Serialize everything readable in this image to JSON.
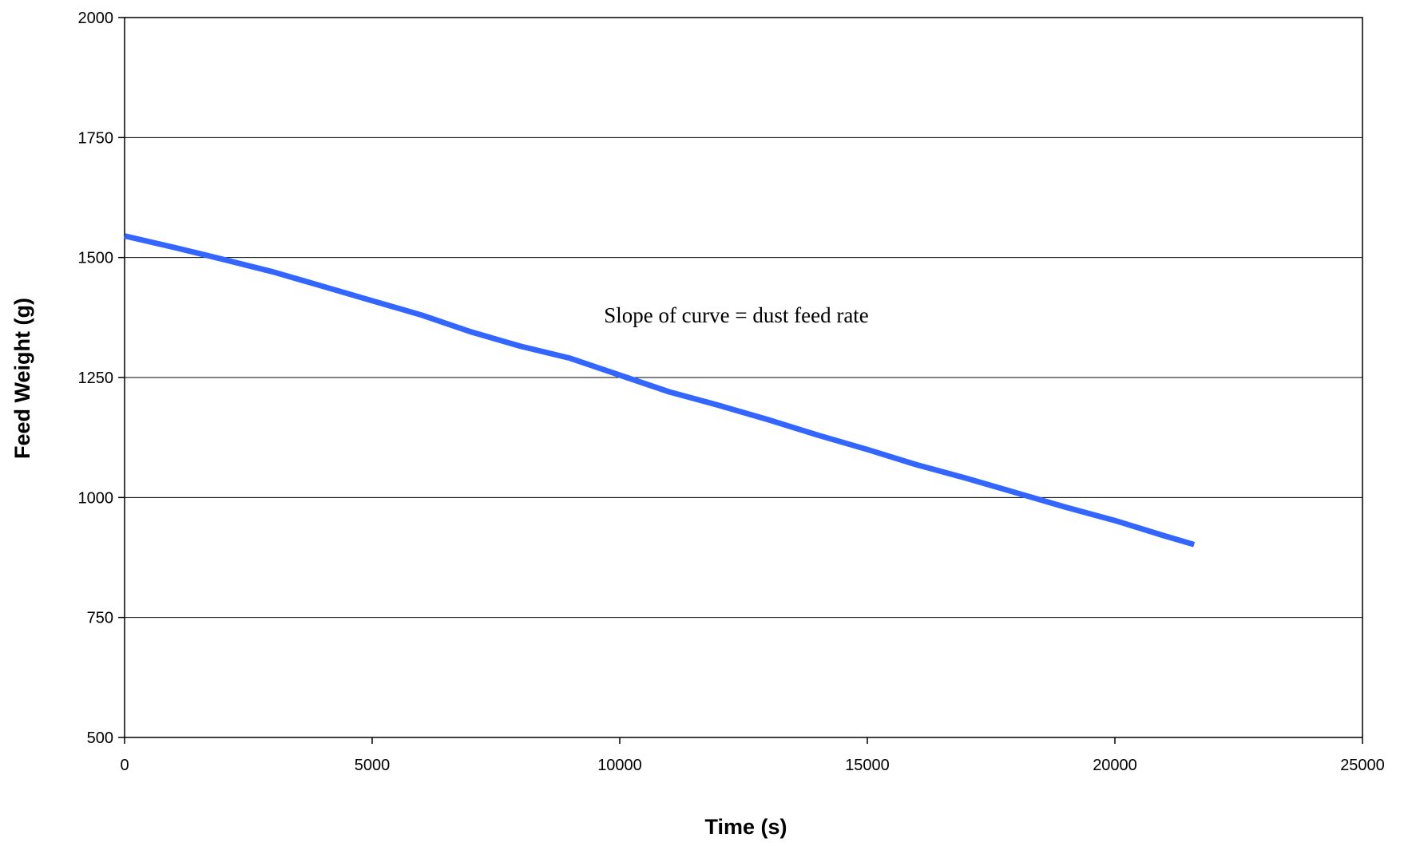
{
  "chart_data": {
    "type": "line",
    "title": "",
    "xlabel": "Time (s)",
    "ylabel": "Feed Weight (g)",
    "xlim": [
      0,
      25000
    ],
    "ylim": [
      500,
      2000
    ],
    "x_ticks": [
      "0",
      "5000",
      "10000",
      "15000",
      "20000",
      "25000"
    ],
    "y_ticks": [
      "500",
      "750",
      "1000",
      "1250",
      "1500",
      "1750",
      "2000"
    ],
    "grid": "horizontal",
    "legend": "none",
    "annotation": "Slope of curve = dust feed rate",
    "series": [
      {
        "color": "#3366ff",
        "x": [
          0,
          1000,
          2000,
          3000,
          4000,
          5000,
          6000,
          7000,
          8000,
          9000,
          10000,
          11000,
          12000,
          13000,
          14000,
          15000,
          16000,
          17000,
          18000,
          19000,
          20000,
          21000,
          21600
        ],
        "y": [
          1545,
          1521,
          1496,
          1470,
          1440,
          1410,
          1380,
          1345,
          1315,
          1290,
          1255,
          1220,
          1192,
          1162,
          1130,
          1100,
          1068,
          1040,
          1010,
          980,
          952,
          920,
          902
        ]
      }
    ]
  }
}
